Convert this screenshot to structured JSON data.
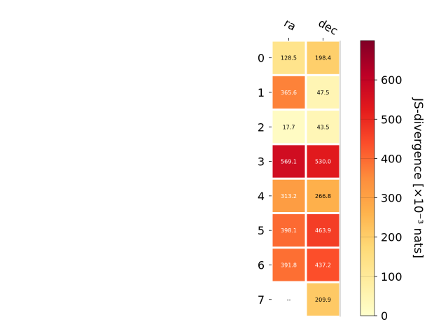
{
  "chart_data": {
    "type": "heatmap",
    "columns": [
      "ra",
      "dec"
    ],
    "rows": [
      "0",
      "1",
      "2",
      "3",
      "4",
      "5",
      "6",
      "7"
    ],
    "values": [
      [
        128.5,
        198.4
      ],
      [
        365.6,
        47.5
      ],
      [
        17.7,
        43.5
      ],
      [
        569.1,
        530.0
      ],
      [
        313.2,
        266.8
      ],
      [
        398.1,
        463.9
      ],
      [
        391.8,
        437.2
      ],
      [
        null,
        209.9
      ]
    ],
    "missing_label": "--",
    "colorbar": {
      "label": "JS-divergence [×10⁻³ nats]",
      "min": 0,
      "max": 700,
      "ticks": [
        0,
        100,
        200,
        300,
        400,
        500,
        600
      ],
      "colormap": "YlOrRd"
    }
  }
}
